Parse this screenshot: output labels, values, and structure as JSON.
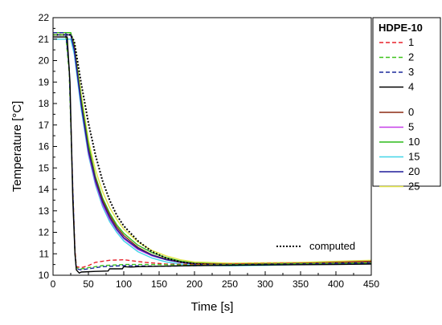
{
  "chart_data": {
    "type": "line",
    "xlabel": "Time [s]",
    "ylabel": "Temperature  [°C]",
    "xlim": [
      0,
      450
    ],
    "ylim": [
      10,
      22
    ],
    "xticks": [
      "0",
      "50",
      "100",
      "150",
      "200",
      "250",
      "300",
      "350",
      "400",
      "450"
    ],
    "yticks": [
      "10",
      "11",
      "12",
      "13",
      "14",
      "15",
      "16",
      "17",
      "18",
      "19",
      "20",
      "21",
      "22"
    ],
    "grid": false,
    "legend": {
      "placement": "right",
      "title": "HDPE-10",
      "group_a": [
        {
          "name": "1",
          "color": "#e8202a",
          "dash": "dashed"
        },
        {
          "name": "2",
          "color": "#3ec31c",
          "dash": "dashed"
        },
        {
          "name": "3",
          "color": "#1c2a9c",
          "dash": "dashed"
        },
        {
          "name": "4",
          "color": "#000000",
          "dash": "solid"
        }
      ],
      "group_b": [
        {
          "name": "0",
          "color": "#8b2a12",
          "dash": "solid"
        },
        {
          "name": "5",
          "color": "#c63fe8",
          "dash": "solid"
        },
        {
          "name": "10",
          "color": "#2dbb1a",
          "dash": "solid"
        },
        {
          "name": "15",
          "color": "#43d5e8",
          "dash": "solid"
        },
        {
          "name": "20",
          "color": "#1e1c9a",
          "dash": "solid"
        },
        {
          "name": "25",
          "color": "#e3e64a",
          "dash": "solid"
        }
      ]
    },
    "annotation": {
      "label": "computed",
      "color": "#000000",
      "dash": "dotted",
      "placement": "bottom-right"
    },
    "series": [
      {
        "name": "1",
        "color": "#e8202a",
        "dash": "dashed",
        "points": [
          [
            0,
            21.2
          ],
          [
            18,
            21.2
          ],
          [
            23,
            19.5
          ],
          [
            28,
            14.0
          ],
          [
            31,
            11.2
          ],
          [
            33,
            10.4
          ],
          [
            40,
            10.35
          ],
          [
            50,
            10.45
          ],
          [
            60,
            10.6
          ],
          [
            80,
            10.7
          ],
          [
            100,
            10.72
          ],
          [
            130,
            10.6
          ],
          [
            160,
            10.52
          ],
          [
            200,
            10.5
          ],
          [
            300,
            10.55
          ],
          [
            400,
            10.58
          ],
          [
            450,
            10.6
          ]
        ]
      },
      {
        "name": "2",
        "color": "#3ec31c",
        "dash": "dashed",
        "points": [
          [
            0,
            21.2
          ],
          [
            18,
            21.2
          ],
          [
            23,
            19.4
          ],
          [
            28,
            13.8
          ],
          [
            31,
            11.0
          ],
          [
            33,
            10.35
          ],
          [
            40,
            10.3
          ],
          [
            50,
            10.35
          ],
          [
            70,
            10.45
          ],
          [
            100,
            10.5
          ],
          [
            140,
            10.5
          ],
          [
            200,
            10.47
          ],
          [
            300,
            10.52
          ],
          [
            450,
            10.58
          ]
        ]
      },
      {
        "name": "3",
        "color": "#1c2a9c",
        "dash": "dashed",
        "points": [
          [
            0,
            21.3
          ],
          [
            18,
            21.3
          ],
          [
            23,
            19.6
          ],
          [
            28,
            14.0
          ],
          [
            31,
            11.0
          ],
          [
            33,
            10.3
          ],
          [
            40,
            10.25
          ],
          [
            50,
            10.3
          ],
          [
            70,
            10.4
          ],
          [
            100,
            10.45
          ],
          [
            150,
            10.42
          ],
          [
            200,
            10.45
          ],
          [
            300,
            10.5
          ],
          [
            450,
            10.55
          ]
        ]
      },
      {
        "name": "4",
        "color": "#000000",
        "dash": "solid",
        "points": [
          [
            0,
            21.1
          ],
          [
            20,
            21.1
          ],
          [
            24,
            19.0
          ],
          [
            28,
            13.5
          ],
          [
            31,
            11.0
          ],
          [
            33,
            10.25
          ],
          [
            37,
            10.1
          ],
          [
            40,
            10.15
          ],
          [
            60,
            10.18
          ],
          [
            78,
            10.2
          ],
          [
            80,
            10.3
          ],
          [
            98,
            10.3
          ],
          [
            100,
            10.4
          ],
          [
            110,
            10.38
          ],
          [
            120,
            10.4
          ],
          [
            150,
            10.42
          ],
          [
            200,
            10.45
          ],
          [
            300,
            10.48
          ],
          [
            400,
            10.5
          ],
          [
            450,
            10.52
          ]
        ]
      },
      {
        "name": "0",
        "color": "#8b2a12",
        "dash": "solid",
        "points": [
          [
            0,
            21.2
          ],
          [
            25,
            21.2
          ],
          [
            30,
            20.6
          ],
          [
            40,
            18.0
          ],
          [
            50,
            15.9
          ],
          [
            60,
            14.5
          ],
          [
            70,
            13.5
          ],
          [
            80,
            12.8
          ],
          [
            90,
            12.25
          ],
          [
            100,
            11.85
          ],
          [
            120,
            11.3
          ],
          [
            140,
            10.95
          ],
          [
            160,
            10.75
          ],
          [
            180,
            10.62
          ],
          [
            200,
            10.55
          ],
          [
            250,
            10.5
          ],
          [
            300,
            10.52
          ],
          [
            350,
            10.55
          ],
          [
            400,
            10.6
          ],
          [
            450,
            10.65
          ]
        ]
      },
      {
        "name": "5",
        "color": "#c63fe8",
        "dash": "solid",
        "points": [
          [
            0,
            21.2
          ],
          [
            25,
            21.2
          ],
          [
            30,
            20.5
          ],
          [
            40,
            17.9
          ],
          [
            50,
            15.7
          ],
          [
            60,
            14.3
          ],
          [
            70,
            13.3
          ],
          [
            80,
            12.6
          ],
          [
            90,
            12.1
          ],
          [
            100,
            11.7
          ],
          [
            120,
            11.2
          ],
          [
            140,
            10.9
          ],
          [
            160,
            10.72
          ],
          [
            180,
            10.6
          ],
          [
            200,
            10.52
          ],
          [
            250,
            10.48
          ],
          [
            300,
            10.5
          ],
          [
            350,
            10.52
          ],
          [
            400,
            10.55
          ],
          [
            450,
            10.58
          ]
        ]
      },
      {
        "name": "10",
        "color": "#2dbb1a",
        "dash": "solid",
        "points": [
          [
            0,
            21.3
          ],
          [
            25,
            21.3
          ],
          [
            30,
            20.7
          ],
          [
            40,
            18.2
          ],
          [
            50,
            16.1
          ],
          [
            60,
            14.6
          ],
          [
            70,
            13.6
          ],
          [
            80,
            12.9
          ],
          [
            90,
            12.35
          ],
          [
            100,
            11.95
          ],
          [
            120,
            11.4
          ],
          [
            140,
            11.05
          ],
          [
            160,
            10.82
          ],
          [
            180,
            10.66
          ],
          [
            200,
            10.57
          ],
          [
            250,
            10.52
          ],
          [
            300,
            10.54
          ],
          [
            350,
            10.56
          ],
          [
            400,
            10.6
          ],
          [
            450,
            10.64
          ]
        ]
      },
      {
        "name": "15",
        "color": "#43d5e8",
        "dash": "solid",
        "points": [
          [
            0,
            21.0
          ],
          [
            25,
            21.0
          ],
          [
            30,
            20.3
          ],
          [
            40,
            17.7
          ],
          [
            50,
            15.6
          ],
          [
            60,
            14.2
          ],
          [
            70,
            13.2
          ],
          [
            80,
            12.5
          ],
          [
            90,
            12.0
          ],
          [
            100,
            11.6
          ],
          [
            120,
            11.1
          ],
          [
            140,
            10.8
          ],
          [
            160,
            10.62
          ],
          [
            180,
            10.52
          ],
          [
            200,
            10.46
          ],
          [
            250,
            10.44
          ],
          [
            300,
            10.46
          ],
          [
            350,
            10.5
          ],
          [
            400,
            10.52
          ],
          [
            450,
            10.55
          ]
        ]
      },
      {
        "name": "20",
        "color": "#1e1c9a",
        "dash": "solid",
        "points": [
          [
            0,
            21.2
          ],
          [
            25,
            21.2
          ],
          [
            30,
            20.5
          ],
          [
            40,
            17.9
          ],
          [
            50,
            15.8
          ],
          [
            60,
            14.4
          ],
          [
            70,
            13.4
          ],
          [
            80,
            12.7
          ],
          [
            90,
            12.15
          ],
          [
            100,
            11.75
          ],
          [
            120,
            11.25
          ],
          [
            140,
            10.93
          ],
          [
            160,
            10.72
          ],
          [
            180,
            10.6
          ],
          [
            200,
            10.52
          ],
          [
            250,
            10.48
          ],
          [
            300,
            10.5
          ],
          [
            350,
            10.52
          ],
          [
            400,
            10.55
          ],
          [
            450,
            10.58
          ]
        ]
      },
      {
        "name": "25",
        "color": "#e3e64a",
        "dash": "solid",
        "points": [
          [
            0,
            21.3
          ],
          [
            25,
            21.3
          ],
          [
            30,
            20.8
          ],
          [
            40,
            18.4
          ],
          [
            50,
            16.3
          ],
          [
            60,
            14.9
          ],
          [
            70,
            13.9
          ],
          [
            80,
            13.15
          ],
          [
            90,
            12.6
          ],
          [
            100,
            12.15
          ],
          [
            120,
            11.55
          ],
          [
            140,
            11.15
          ],
          [
            160,
            10.9
          ],
          [
            180,
            10.72
          ],
          [
            200,
            10.62
          ],
          [
            250,
            10.56
          ],
          [
            300,
            10.58
          ],
          [
            350,
            10.6
          ],
          [
            400,
            10.65
          ],
          [
            450,
            10.7
          ]
        ]
      },
      {
        "name": "computed",
        "color": "#000000",
        "dash": "dotted",
        "points": [
          [
            0,
            21.2
          ],
          [
            25,
            21.2
          ],
          [
            30,
            20.9
          ],
          [
            40,
            18.9
          ],
          [
            50,
            17.1
          ],
          [
            60,
            15.6
          ],
          [
            70,
            14.4
          ],
          [
            80,
            13.5
          ],
          [
            90,
            12.8
          ],
          [
            100,
            12.3
          ],
          [
            120,
            11.6
          ],
          [
            140,
            11.1
          ],
          [
            160,
            10.8
          ],
          [
            180,
            10.62
          ],
          [
            200,
            10.53
          ],
          [
            250,
            10.48
          ],
          [
            300,
            10.5
          ],
          [
            350,
            10.52
          ],
          [
            400,
            10.55
          ],
          [
            450,
            10.58
          ]
        ]
      }
    ]
  }
}
